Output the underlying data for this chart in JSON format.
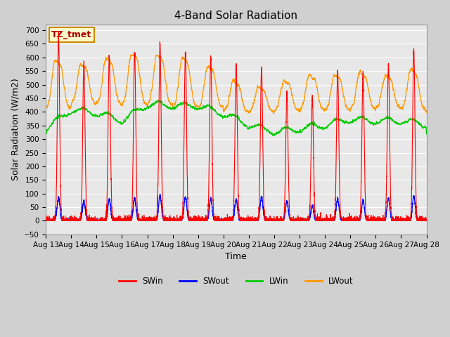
{
  "title": "4-Band Solar Radiation",
  "xlabel": "Time",
  "ylabel": "Solar Radiation (W/m2)",
  "ylim": [
    -50,
    720
  ],
  "xtick_labels": [
    "Aug 13",
    "Aug 14",
    "Aug 15",
    "Aug 16",
    "Aug 17",
    "Aug 18",
    "Aug 19",
    "Aug 20",
    "Aug 21",
    "Aug 22",
    "Aug 23",
    "Aug 24",
    "Aug 25",
    "Aug 26",
    "Aug 27",
    "Aug 28"
  ],
  "annotation_text": "TZ_tmet",
  "annotation_bg": "#ffffcc",
  "annotation_border": "#cc8800",
  "colors": {
    "SWin": "#ff0000",
    "SWout": "#0000ff",
    "LWin": "#00cc00",
    "LWout": "#ff9900"
  },
  "background_color": "#e8e8e8",
  "grid_color": "#ffffff",
  "title_fontsize": 11,
  "label_fontsize": 9,
  "tick_fontsize": 7.5
}
